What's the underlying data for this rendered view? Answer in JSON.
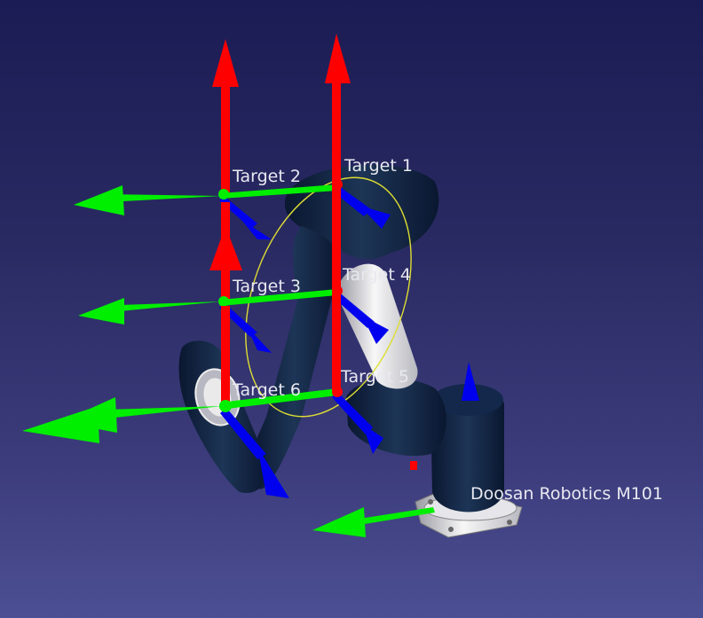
{
  "viewport": {
    "background_top": "#1c1c55",
    "background_bottom": "#4c4f93"
  },
  "axis_colors": {
    "x": "#ff0000",
    "y": "#00ee00",
    "z": "#0000ee"
  },
  "robot": {
    "label": "Doosan Robotics M101"
  },
  "targets": [
    {
      "label": "Target 1"
    },
    {
      "label": "Target 2"
    },
    {
      "label": "Target 3"
    },
    {
      "label": "Target 4"
    },
    {
      "label": "Target 5"
    },
    {
      "label": "Target 6"
    }
  ]
}
